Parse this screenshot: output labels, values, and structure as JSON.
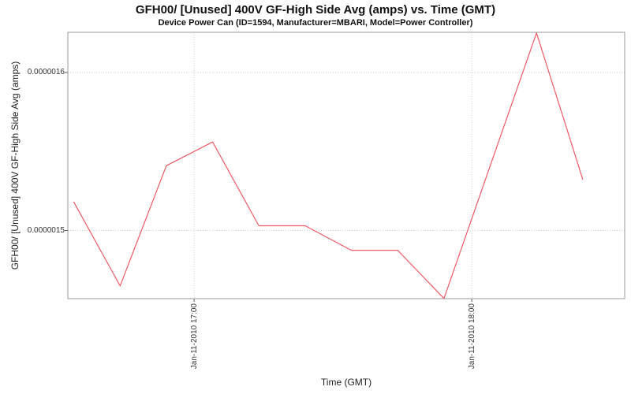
{
  "colors": {
    "line": "#ee5a64",
    "grid": "#cccccc",
    "border": "#999999",
    "tick_mark": "#555555",
    "background": "#ffffff"
  },
  "chart_data": {
    "type": "line",
    "title": "GFH00/ [Unused] 400V GF-High Side Avg (amps) vs. Time (GMT)",
    "subtitle": "Device Power Can (ID=1594, Manufacturer=MBARI, Model=Power Controller)",
    "xlabel": "Time (GMT)",
    "ylabel": "GFH00/ [Unused] 400V GF-High Side Avg (amps)",
    "legend": false,
    "grid": true,
    "x_times_gmt": [
      "16:34",
      "16:44",
      "16:54",
      "17:04",
      "17:14",
      "17:24",
      "17:34",
      "17:44",
      "17:54",
      "18:04",
      "18:14",
      "18:24"
    ],
    "values": [
      1.518e-06,
      1.465e-06,
      1.541e-06,
      1.556e-06,
      1.503e-06,
      1.503e-06,
      1.4875e-06,
      1.4875e-06,
      1.457e-06,
      1.541e-06,
      1.625e-06,
      1.5325e-06
    ],
    "x_ticks": [
      {
        "label": "Jan-11-2010 17:00",
        "time": "17:00"
      },
      {
        "label": "Jan-11-2010 18:00",
        "time": "18:00"
      }
    ],
    "y_ticks": [
      {
        "label": "0.0000015",
        "value": 1.5e-06
      },
      {
        "label": "0.0000016",
        "value": 1.6e-06
      }
    ],
    "xlim": [
      "16:32:42",
      "18:33:04"
    ],
    "ylim": [
      1.4569e-06,
      1.6254e-06
    ]
  }
}
